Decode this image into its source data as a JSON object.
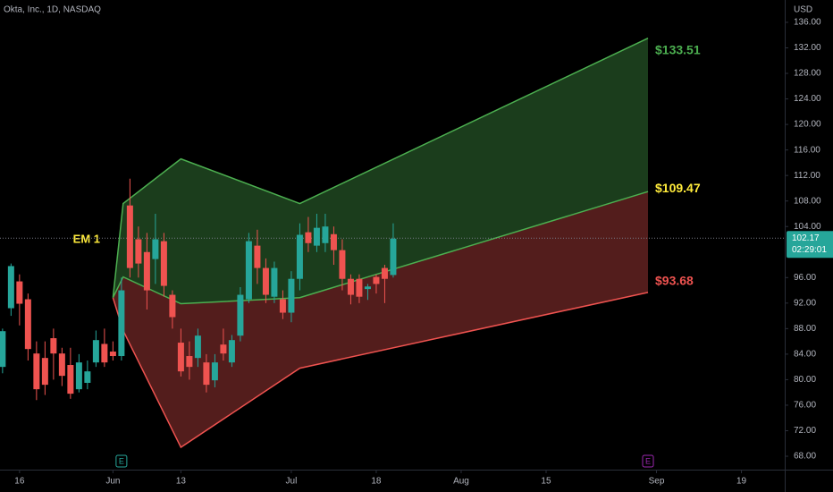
{
  "chart_data": {
    "type": "candlestick",
    "title": "Okta, Inc., 1D, NASDAQ",
    "currency": "USD",
    "annotation": "EM 1",
    "xlim": [
      -2.3,
      90.1
    ],
    "xticks": [
      {
        "value": 0,
        "label": "16"
      },
      {
        "value": 11,
        "label": "Jun"
      },
      {
        "value": 19,
        "label": "13"
      },
      {
        "value": 32,
        "label": "Jul"
      },
      {
        "value": 42,
        "label": "18"
      },
      {
        "value": 52,
        "label": "Aug"
      },
      {
        "value": 62,
        "label": "15"
      },
      {
        "value": 75,
        "label": "Sep"
      },
      {
        "value": 85,
        "label": "19"
      }
    ],
    "ylim": [
      65.9,
      139.5
    ],
    "yticks": [
      {
        "value": 68,
        "label": "68.00"
      },
      {
        "value": 72,
        "label": "72.00"
      },
      {
        "value": 76,
        "label": "76.00"
      },
      {
        "value": 80,
        "label": "80.00"
      },
      {
        "value": 84,
        "label": "84.00"
      },
      {
        "value": 88,
        "label": "88.00"
      },
      {
        "value": 92,
        "label": "92.00"
      },
      {
        "value": 96,
        "label": "96.00"
      },
      {
        "value": 104,
        "label": "104.00"
      },
      {
        "value": 108,
        "label": "108.00"
      },
      {
        "value": 112,
        "label": "112.00"
      },
      {
        "value": 116,
        "label": "116.00"
      },
      {
        "value": 120,
        "label": "120.00"
      },
      {
        "value": 124,
        "label": "124.00"
      },
      {
        "value": 128,
        "label": "128.00"
      },
      {
        "value": 132,
        "label": "132.00"
      },
      {
        "value": 136,
        "label": "136.00"
      }
    ],
    "up_color": "#26a69a",
    "down_color": "#ef5350",
    "candles": {
      "x": [
        -2,
        -1,
        0,
        1,
        2,
        3,
        4,
        5,
        6,
        7,
        8,
        9,
        10,
        11,
        12,
        13,
        14,
        15,
        16,
        17,
        18,
        19,
        20,
        21,
        22,
        23,
        24,
        25,
        26,
        27,
        28,
        29,
        30,
        31,
        32,
        33,
        34,
        35,
        36,
        37,
        38,
        39,
        40,
        41,
        42,
        43,
        44
      ],
      "open": [
        82,
        91.2,
        95.4,
        92.6,
        84.1,
        83.4,
        86.5,
        84.1,
        82.3,
        78.5,
        79.5,
        82.7,
        85.6,
        84.4,
        83.7,
        107.3,
        102,
        100,
        98.9,
        101.7,
        93.3,
        85.8,
        83.7,
        83.4,
        82.7,
        79.9,
        85.5,
        82.7,
        86.9,
        92.6,
        101,
        97.5,
        93,
        92.6,
        90.5,
        95.8,
        103.1,
        101,
        101.4,
        102.8,
        100.3,
        95.8,
        95.8,
        94.2,
        96.1,
        97.5,
        96.4
      ],
      "high": [
        88,
        98.2,
        96.5,
        93.5,
        86,
        86,
        88,
        85,
        85,
        84,
        83,
        87.7,
        88,
        86,
        96,
        111.5,
        104,
        103,
        106,
        103,
        94,
        88,
        86,
        88,
        84,
        84,
        88,
        87,
        94.5,
        103,
        103.5,
        99,
        98.5,
        94,
        97,
        104.5,
        105.5,
        106,
        106,
        104,
        102,
        96.5,
        96.5,
        95,
        96.5,
        98,
        104.5
      ],
      "low": [
        81,
        90,
        88.5,
        83,
        76.8,
        77.6,
        80,
        79,
        77,
        78,
        78.5,
        82,
        82,
        83,
        83,
        96,
        96,
        91,
        95,
        93,
        88,
        80.5,
        80,
        82,
        78,
        78.8,
        83,
        82,
        86,
        92,
        95,
        92,
        92,
        89.5,
        89,
        94,
        100,
        100,
        100,
        98,
        94,
        91.8,
        92,
        92.5,
        93.5,
        92,
        96
      ],
      "close": [
        87.6,
        97.8,
        91.9,
        84.8,
        78.5,
        79.2,
        84.1,
        80.6,
        77.8,
        82.7,
        81.3,
        86.2,
        82.7,
        83.7,
        94,
        97.5,
        98.2,
        94,
        102,
        94.7,
        89.8,
        81.3,
        82,
        86.9,
        79.2,
        82.7,
        84.1,
        86.2,
        93.3,
        101.7,
        97.5,
        93.3,
        97.5,
        90.5,
        95.8,
        102.7,
        101.4,
        103.8,
        104,
        100.3,
        95.8,
        93.3,
        93,
        94.6,
        95,
        95.8,
        102.1
      ]
    },
    "bands": {
      "x": [
        11,
        12.2,
        19,
        33,
        74
      ],
      "series": [
        {
          "color": "#4caf50",
          "values": [
            92.85,
            107.6,
            114.6,
            107.6,
            133.51
          ],
          "value_labels": [
            null,
            null,
            null,
            null,
            "$133.51"
          ]
        },
        {
          "color": "#ffeb3b",
          "values": [
            92.85,
            96.1,
            91.9,
            92.85,
            109.47
          ],
          "value_labels": [
            null,
            null,
            null,
            null,
            "$109.47"
          ]
        },
        {
          "color": "#ef5350",
          "values": [
            92.85,
            87.7,
            69.4,
            81.8,
            93.68
          ],
          "value_labels": [
            null,
            null,
            null,
            null,
            "$93.68"
          ]
        }
      ]
    },
    "last_price": {
      "value": 102.17,
      "countdown": "02:29:01",
      "color": "#26a69a"
    },
    "events": [
      {
        "x": 12,
        "label": "E",
        "color": "#26a69a"
      },
      {
        "x": 74,
        "label": "E",
        "color": "#9c27b0"
      }
    ]
  }
}
